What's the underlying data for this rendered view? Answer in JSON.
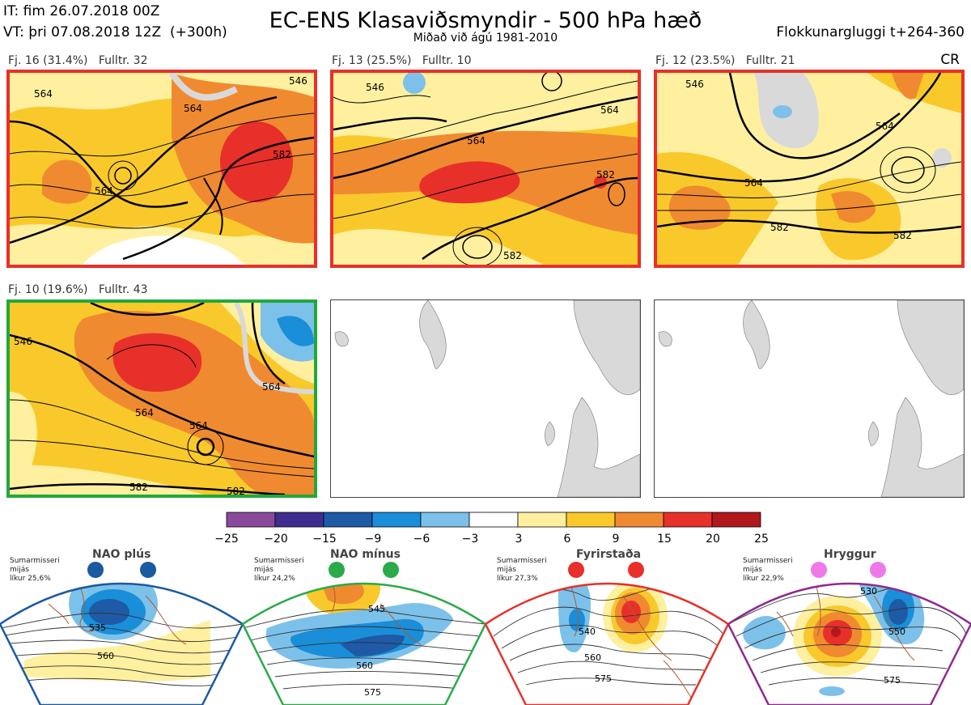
{
  "header": {
    "init_time": "IT: fim 26.07.2018 00Z",
    "valid_time": "VT: þri 07.08.2018 12Z",
    "lead": "(+300h)",
    "title": "EC-ENS Klasaviðsmyndir - 500 hPa hæð",
    "subtitle": "Miðað við ágú 1981-2010",
    "window": "Flokkunargluggi t+264-360",
    "cr": "CR"
  },
  "clusters": [
    {
      "label": "Fj. 16 (31.4%)",
      "members": "Fulltr. 32",
      "border": "#e8302a"
    },
    {
      "label": "Fj. 13 (25.5%)",
      "members": "Fulltr. 10",
      "border": "#e8302a"
    },
    {
      "label": "Fj. 12 (23.5%)",
      "members": "Fulltr. 21",
      "border": "#e8302a"
    },
    {
      "label": "Fj. 10 (19.6%)",
      "members": "Fulltr. 43",
      "border": "#22a83a"
    }
  ],
  "contour_labels": {
    "p1": [
      "564",
      "564",
      "564",
      "582",
      "546"
    ],
    "p2": [
      "546",
      "564",
      "582",
      "582",
      "564"
    ],
    "p3": [
      "546",
      "564",
      "564",
      "582",
      "582"
    ],
    "p4": [
      "546",
      "564",
      "564",
      "564",
      "582",
      "582"
    ]
  },
  "colorbar": {
    "ticks": [
      "−25",
      "−20",
      "−15",
      "−9",
      "−6",
      "−3",
      "3",
      "6",
      "9",
      "15",
      "20",
      "25"
    ],
    "colors": [
      "#8a4a9c",
      "#3f2e8f",
      "#1e5aa6",
      "#1a8ed8",
      "#7cc1ea",
      "#ffffff",
      "#fff0a0",
      "#f9c92c",
      "#f08a30",
      "#e8302a",
      "#b0181c"
    ]
  },
  "regimes": [
    {
      "name": "NAO plús",
      "text": [
        "Sumarmisseri",
        "mijás",
        "líkur 25,6%"
      ],
      "color": "#1a5aa0",
      "labels": [
        "535",
        "560"
      ]
    },
    {
      "name": "NAO mínus",
      "text": [
        "Sumarmisseri",
        "mijás",
        "líkur 24,2%"
      ],
      "color": "#2aaa48",
      "labels": [
        "545",
        "560",
        "575"
      ]
    },
    {
      "name": "Fyrirstaða",
      "text": [
        "Sumarmisseri",
        "mijás",
        "líkur 27,3%"
      ],
      "color": "#e8302a",
      "labels": [
        "540",
        "560",
        "575"
      ]
    },
    {
      "name": "Hryggur",
      "text": [
        "Sumarmisseri",
        "mijás",
        "líkur 22,9%"
      ],
      "color": "#8e2a8e",
      "labels": [
        "530",
        "550",
        "575"
      ]
    }
  ]
}
